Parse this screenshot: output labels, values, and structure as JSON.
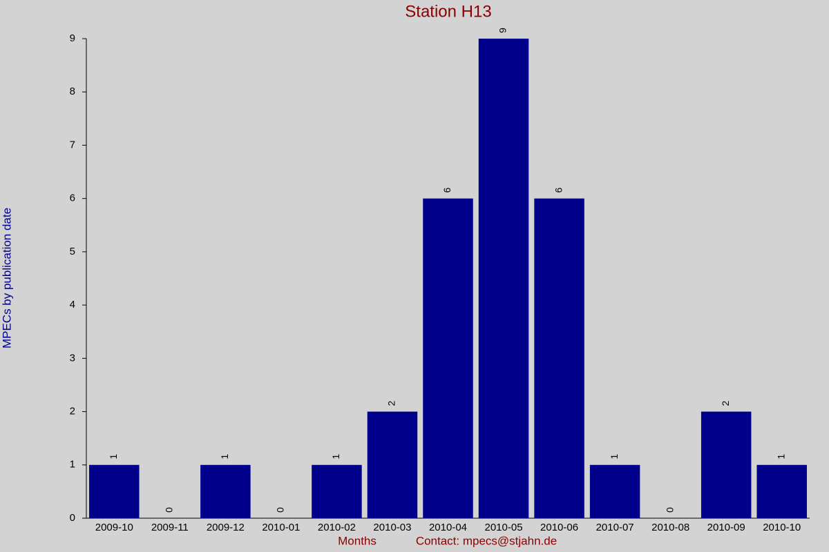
{
  "chart_data": {
    "type": "bar",
    "title": "Station H13",
    "y_label": "MPECs by publication date",
    "x_label": "Months",
    "note": "Contact: mpecs@stjahn.de",
    "categories": [
      "2009-10",
      "2009-11",
      "2009-12",
      "2010-01",
      "2010-02",
      "2010-03",
      "2010-04",
      "2010-05",
      "2010-06",
      "2010-07",
      "2010-08",
      "2010-09",
      "2010-10"
    ],
    "values": [
      1,
      0,
      1,
      0,
      1,
      2,
      6,
      9,
      6,
      1,
      0,
      2,
      1
    ],
    "color": "#00008b",
    "ylim": [
      0,
      9
    ],
    "yticks": [
      0,
      1,
      2,
      3,
      4,
      5,
      6,
      7,
      8,
      9
    ],
    "grid": false
  }
}
